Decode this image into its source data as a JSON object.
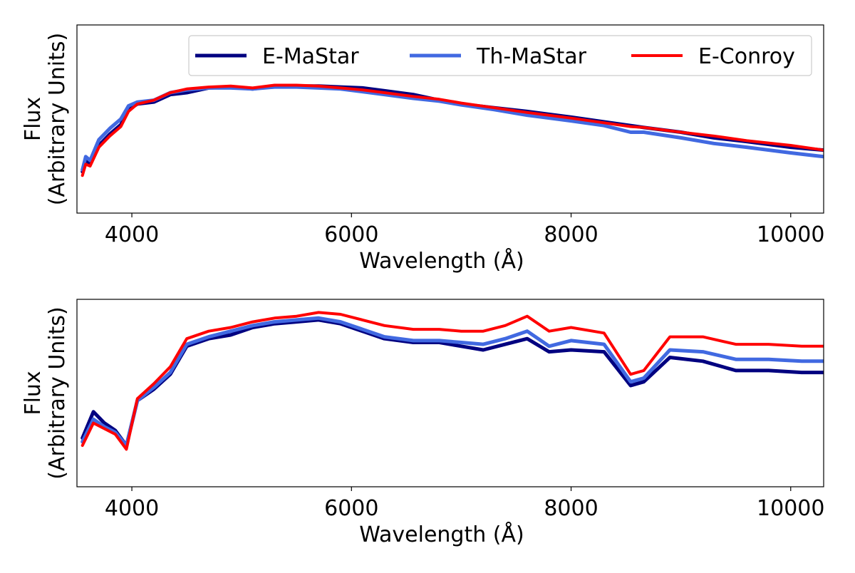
{
  "colors": {
    "e_mastar": "#000080",
    "th_mastar": "#4169e1",
    "e_conroy": "#ff0000",
    "axes": "#000000",
    "legend_border": "#cccccc",
    "background": "#ffffff"
  },
  "chart_data": [
    {
      "type": "line",
      "xlabel": "Wavelength (Å)",
      "ylabel": [
        "Flux",
        "(Arbitrary Units)"
      ],
      "xlim": [
        3500,
        10300
      ],
      "ylim": [
        0,
        1
      ],
      "xticks": [
        4000,
        6000,
        8000,
        10000
      ],
      "xtick_labels": [
        "4000",
        "6000",
        "8000",
        "10000"
      ],
      "yticks": [],
      "grid": false,
      "legend": {
        "placement": "top-right",
        "entries": [
          "E-MaStar",
          "Th-MaStar",
          "E-Conroy"
        ]
      },
      "series": [
        {
          "name": "E-MaStar",
          "x": [
            3550,
            3580,
            3620,
            3700,
            3800,
            3900,
            3970,
            4050,
            4200,
            4350,
            4500,
            4700,
            4900,
            5100,
            5300,
            5500,
            5700,
            5900,
            6100,
            6300,
            6563,
            6800,
            7000,
            7300,
            7600,
            8000,
            8300,
            8542,
            8662,
            9000,
            9300,
            9600,
            10000,
            10300
          ],
          "y": [
            0.22,
            0.28,
            0.26,
            0.36,
            0.42,
            0.47,
            0.55,
            0.58,
            0.59,
            0.63,
            0.64,
            0.665,
            0.67,
            0.66,
            0.675,
            0.675,
            0.675,
            0.67,
            0.665,
            0.65,
            0.63,
            0.6,
            0.58,
            0.56,
            0.54,
            0.51,
            0.485,
            0.465,
            0.455,
            0.43,
            0.4,
            0.38,
            0.35,
            0.335
          ]
        },
        {
          "name": "Th-MaStar",
          "x": [
            3550,
            3580,
            3620,
            3700,
            3800,
            3900,
            3970,
            4050,
            4200,
            4350,
            4500,
            4700,
            4900,
            5100,
            5300,
            5500,
            5700,
            5900,
            6100,
            6300,
            6563,
            6800,
            7000,
            7300,
            7600,
            8000,
            8300,
            8542,
            8662,
            9000,
            9300,
            9600,
            10000,
            10300
          ],
          "y": [
            0.23,
            0.3,
            0.28,
            0.39,
            0.45,
            0.5,
            0.57,
            0.59,
            0.6,
            0.64,
            0.655,
            0.665,
            0.665,
            0.66,
            0.67,
            0.67,
            0.665,
            0.66,
            0.645,
            0.63,
            0.61,
            0.595,
            0.575,
            0.55,
            0.52,
            0.49,
            0.465,
            0.43,
            0.43,
            0.4,
            0.37,
            0.35,
            0.32,
            0.3
          ]
        },
        {
          "name": "E-Conroy",
          "x": [
            3550,
            3580,
            3620,
            3700,
            3800,
            3900,
            3970,
            4050,
            4200,
            4350,
            4500,
            4700,
            4900,
            5100,
            5300,
            5500,
            5700,
            5900,
            6100,
            6300,
            6563,
            6800,
            7000,
            7300,
            7600,
            8000,
            8300,
            8542,
            8662,
            9000,
            9300,
            9600,
            10000,
            10300
          ],
          "y": [
            0.2,
            0.26,
            0.25,
            0.35,
            0.41,
            0.46,
            0.54,
            0.58,
            0.6,
            0.64,
            0.66,
            0.67,
            0.675,
            0.665,
            0.68,
            0.68,
            0.675,
            0.665,
            0.655,
            0.64,
            0.62,
            0.605,
            0.585,
            0.56,
            0.535,
            0.505,
            0.48,
            0.46,
            0.455,
            0.43,
            0.41,
            0.385,
            0.36,
            0.335
          ]
        }
      ]
    },
    {
      "type": "line",
      "xlabel": "Wavelength (Å)",
      "ylabel": [
        "Flux",
        "(Arbitrary Units)"
      ],
      "xlim": [
        3500,
        10300
      ],
      "ylim": [
        0,
        1
      ],
      "xticks": [
        4000,
        6000,
        8000,
        10000
      ],
      "xtick_labels": [
        "4000",
        "6000",
        "8000",
        "10000"
      ],
      "yticks": [],
      "grid": false,
      "series": [
        {
          "name": "E-MaStar",
          "x": [
            3550,
            3650,
            3750,
            3850,
            3950,
            4050,
            4200,
            4350,
            4500,
            4700,
            4900,
            5100,
            5300,
            5500,
            5700,
            5900,
            6100,
            6300,
            6563,
            6800,
            7000,
            7200,
            7400,
            7600,
            7800,
            8000,
            8300,
            8542,
            8662,
            8900,
            9200,
            9500,
            9800,
            10100,
            10300
          ],
          "y": [
            0.26,
            0.4,
            0.34,
            0.3,
            0.22,
            0.46,
            0.52,
            0.6,
            0.75,
            0.79,
            0.81,
            0.85,
            0.87,
            0.88,
            0.89,
            0.87,
            0.83,
            0.79,
            0.77,
            0.77,
            0.75,
            0.73,
            0.76,
            0.79,
            0.72,
            0.73,
            0.72,
            0.54,
            0.56,
            0.69,
            0.67,
            0.62,
            0.62,
            0.61,
            0.61
          ]
        },
        {
          "name": "Th-MaStar",
          "x": [
            3550,
            3650,
            3750,
            3850,
            3950,
            4050,
            4200,
            4350,
            4500,
            4700,
            4900,
            5100,
            5300,
            5500,
            5700,
            5900,
            6100,
            6300,
            6563,
            6800,
            7000,
            7200,
            7400,
            7600,
            7800,
            8000,
            8300,
            8542,
            8662,
            8900,
            9200,
            9500,
            9800,
            10100,
            10300
          ],
          "y": [
            0.24,
            0.36,
            0.32,
            0.29,
            0.22,
            0.46,
            0.53,
            0.61,
            0.76,
            0.8,
            0.83,
            0.86,
            0.88,
            0.89,
            0.9,
            0.88,
            0.84,
            0.8,
            0.78,
            0.78,
            0.77,
            0.76,
            0.79,
            0.83,
            0.75,
            0.78,
            0.76,
            0.56,
            0.58,
            0.73,
            0.72,
            0.68,
            0.68,
            0.67,
            0.67
          ]
        },
        {
          "name": "E-Conroy",
          "x": [
            3550,
            3650,
            3750,
            3850,
            3950,
            4050,
            4200,
            4350,
            4500,
            4700,
            4900,
            5100,
            5300,
            5500,
            5700,
            5900,
            6100,
            6300,
            6563,
            6800,
            7000,
            7200,
            7400,
            7600,
            7800,
            8000,
            8300,
            8542,
            8662,
            8900,
            9200,
            9500,
            9800,
            10100,
            10300
          ],
          "y": [
            0.22,
            0.34,
            0.31,
            0.28,
            0.2,
            0.47,
            0.55,
            0.64,
            0.79,
            0.83,
            0.85,
            0.88,
            0.9,
            0.91,
            0.93,
            0.92,
            0.89,
            0.86,
            0.84,
            0.84,
            0.83,
            0.83,
            0.86,
            0.91,
            0.83,
            0.85,
            0.82,
            0.6,
            0.62,
            0.8,
            0.8,
            0.76,
            0.76,
            0.75,
            0.75
          ]
        }
      ]
    }
  ]
}
